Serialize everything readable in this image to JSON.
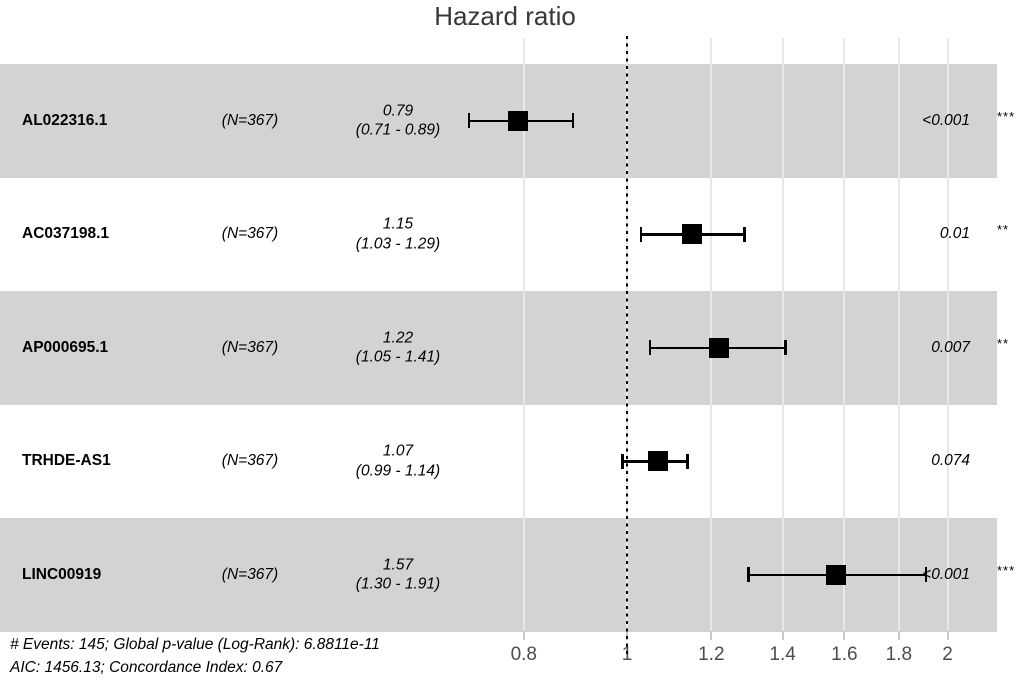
{
  "title": "Hazard ratio",
  "footnotes": {
    "line1": "# Events: 145; Global p-value (Log-Rank): 6.8811e-11",
    "line2": "AIC: 1456.13; Concordance Index: 0.67"
  },
  "colors": {
    "band": "#d3d3d3",
    "grid": "#e8e8e8",
    "marker": "#000000",
    "axis_text": "#4d4d4d"
  },
  "chart_data": {
    "type": "forest",
    "title": "Hazard ratio",
    "x_scale": "log10",
    "x_tick_values": [
      0.8,
      1,
      1.2,
      1.4,
      1.6,
      1.8,
      2
    ],
    "x_tick_labels": [
      "0.8",
      "1",
      "1.2",
      "1.4",
      "1.6",
      "1.8",
      "2"
    ],
    "xlim": [
      0.72,
      2.15
    ],
    "reference_line": 1,
    "legend_position": "none",
    "grid": true,
    "rows": [
      {
        "label": "AL022316.1",
        "n_text": "(N=367)",
        "hr_text": "0.79",
        "ci_text": "(0.71 - 0.89)",
        "hr": 0.79,
        "ci_low": 0.71,
        "ci_high": 0.89,
        "p_text": "<0.001",
        "sig": "***",
        "shaded": true
      },
      {
        "label": "AC037198.1",
        "n_text": "(N=367)",
        "hr_text": "1.15",
        "ci_text": "(1.03 - 1.29)",
        "hr": 1.15,
        "ci_low": 1.03,
        "ci_high": 1.29,
        "p_text": "0.01",
        "sig": "**",
        "shaded": false
      },
      {
        "label": "AP000695.1",
        "n_text": "(N=367)",
        "hr_text": "1.22",
        "ci_text": "(1.05 - 1.41)",
        "hr": 1.22,
        "ci_low": 1.05,
        "ci_high": 1.41,
        "p_text": "0.007",
        "sig": "**",
        "shaded": true
      },
      {
        "label": "TRHDE-AS1",
        "n_text": "(N=367)",
        "hr_text": "1.07",
        "ci_text": "(0.99 - 1.14)",
        "hr": 1.07,
        "ci_low": 0.99,
        "ci_high": 1.14,
        "p_text": "0.074",
        "sig": "",
        "shaded": false
      },
      {
        "label": "LINC00919",
        "n_text": "(N=367)",
        "hr_text": "1.57",
        "ci_text": "(1.30 - 1.91)",
        "hr": 1.57,
        "ci_low": 1.3,
        "ci_high": 1.91,
        "p_text": "<0.001",
        "sig": "***",
        "shaded": true
      }
    ]
  }
}
